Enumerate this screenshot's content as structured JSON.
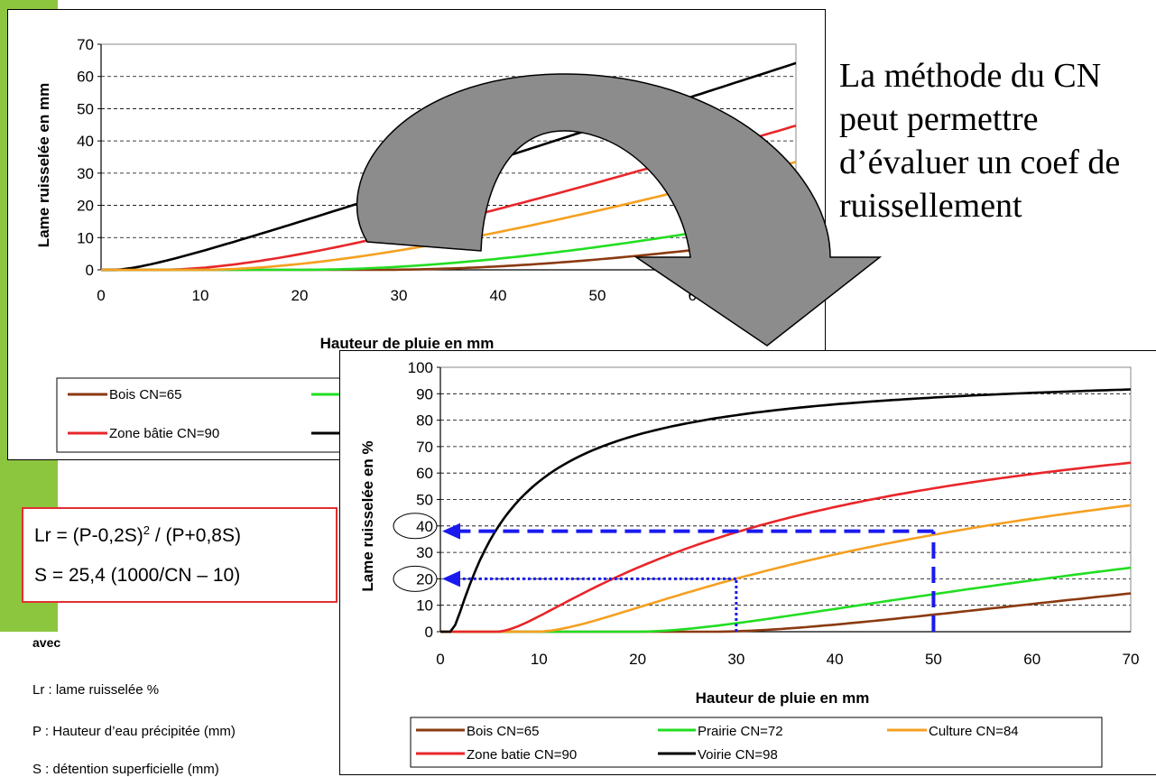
{
  "side_text": "La méthode du CN peut permettre d’évaluer un coef de ruissellement",
  "formula": {
    "line1_a": "Lr = (P-0,2S)",
    "line1_sup": "2",
    "line1_b": " / (P+0,8S)",
    "line2": "S = 25,4 (1000/CN – 10)"
  },
  "notes": {
    "heading": "avec",
    "items": [
      "Lr : lame ruisselée %",
      "P : Hauteur d’eau précipitée (mm)",
      "S : détention superficielle (mm)"
    ]
  },
  "colors": {
    "accent_bar": "#8cc63f",
    "arrow_fill": "#8c8c8c",
    "guide_lines": "#1a1aee"
  },
  "chart_data": [
    {
      "type": "line",
      "title": "",
      "xlabel": "Hauteur de pluie en mm",
      "ylabel": "Lame ruisselée en mm",
      "xlim": [
        0,
        70
      ],
      "ylim": [
        0,
        70
      ],
      "x_ticks": [
        "0",
        "10",
        "20",
        "30",
        "40",
        "50",
        "60"
      ],
      "y_ticks": [
        "0",
        "10",
        "20",
        "30",
        "40",
        "50",
        "60",
        "70"
      ],
      "grid": "horizontal dashed",
      "legend": "bottom",
      "series": [
        {
          "name": "Bois CN=65",
          "color": "#8b3a10",
          "cn": 65
        },
        {
          "name": "Zone bâtie CN=90",
          "color": "#e8262a",
          "cn": 90
        },
        {
          "name": "",
          "color": "#22dd22",
          "cn": 72
        },
        {
          "name": "",
          "color": "#000000",
          "cn": 98
        },
        {
          "name": "",
          "color": "#f5a020",
          "cn": 84
        }
      ]
    },
    {
      "type": "line",
      "title": "",
      "xlabel": "Hauteur de pluie en mm",
      "ylabel": "Lame ruisselée en %",
      "xlim": [
        0,
        70
      ],
      "ylim": [
        0,
        100
      ],
      "x_ticks": [
        "0",
        "10",
        "20",
        "30",
        "40",
        "50",
        "60",
        "70"
      ],
      "y_ticks": [
        "0",
        "10",
        "20",
        "30",
        "40",
        "50",
        "60",
        "70",
        "80",
        "90",
        "100"
      ],
      "grid": "horizontal dashed",
      "legend": "bottom",
      "series": [
        {
          "name": "Bois CN=65",
          "color": "#8b3a10",
          "cn": 65
        },
        {
          "name": "Prairie CN=72",
          "color": "#22dd22",
          "cn": 72
        },
        {
          "name": "Culture CN=84",
          "color": "#f5a020",
          "cn": 84
        },
        {
          "name": "Zone batie CN=90",
          "color": "#e8262a",
          "cn": 90
        },
        {
          "name": "Voirie CN=98",
          "color": "#000000",
          "cn": 98
        }
      ],
      "annotations": [
        {
          "x": 30,
          "y": 20,
          "style": "dotted"
        },
        {
          "x": 50,
          "y": 38,
          "style": "dashed"
        }
      ]
    }
  ]
}
